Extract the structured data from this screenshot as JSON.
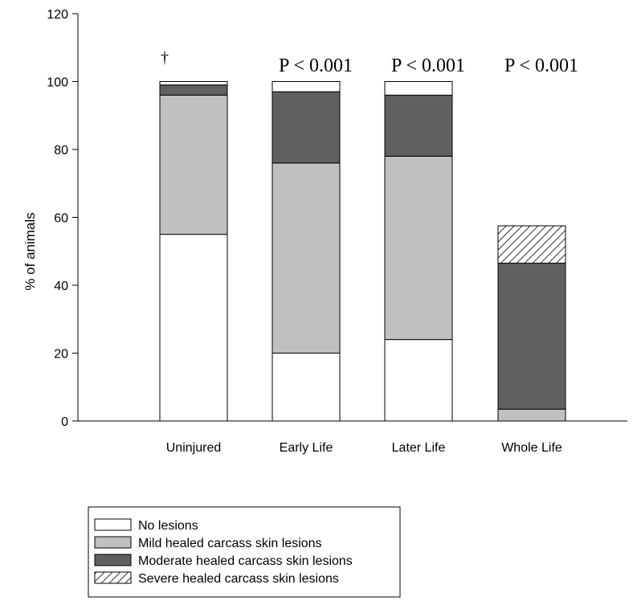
{
  "chart_data": {
    "type": "bar",
    "stacked": true,
    "categories": [
      "Uninjured",
      "Early Life",
      "Later Life",
      "Whole Life"
    ],
    "ylabel": "% of animals",
    "ylim": [
      0,
      120
    ],
    "yticks": [
      0,
      20,
      40,
      60,
      80,
      100,
      120
    ],
    "grid": false,
    "legend_position": "bottom-left",
    "series": [
      {
        "name": "No lesions",
        "values": [
          55,
          20,
          24,
          0
        ],
        "color": "#ffffff",
        "pattern": "none"
      },
      {
        "name": "Mild healed carcass skin lesions",
        "values": [
          41,
          56,
          54,
          3.5
        ],
        "color": "#c0c0c0",
        "pattern": "none"
      },
      {
        "name": "Moderate healed carcass skin lesions",
        "values": [
          3,
          21,
          18,
          43
        ],
        "color": "#606060",
        "pattern": "none"
      },
      {
        "name": "Severe healed carcass skin lesions",
        "values": [
          0,
          0,
          0,
          11
        ],
        "color": "#ffffff",
        "pattern": "hatch"
      }
    ],
    "series_order_per_category": [
      [
        "No lesions",
        "Mild healed carcass skin lesions",
        "Moderate healed carcass skin lesions",
        "Severe healed carcass skin lesions"
      ],
      [
        "No lesions",
        "Mild healed carcass skin lesions",
        "Moderate healed carcass skin lesions",
        "Severe healed carcass skin lesions"
      ],
      [
        "No lesions",
        "Mild healed carcass skin lesions",
        "Moderate healed carcass skin lesions",
        "Severe healed carcass skin lesions"
      ],
      [
        "Mild healed carcass skin lesions",
        "Moderate healed carcass skin lesions",
        "No lesions",
        "Severe healed carcass skin lesions"
      ]
    ],
    "top_segment_values": [
      1,
      3,
      4,
      0
    ],
    "annotations": [
      "†",
      "P < 0.001",
      "P < 0.001",
      "P < 0.001"
    ]
  }
}
